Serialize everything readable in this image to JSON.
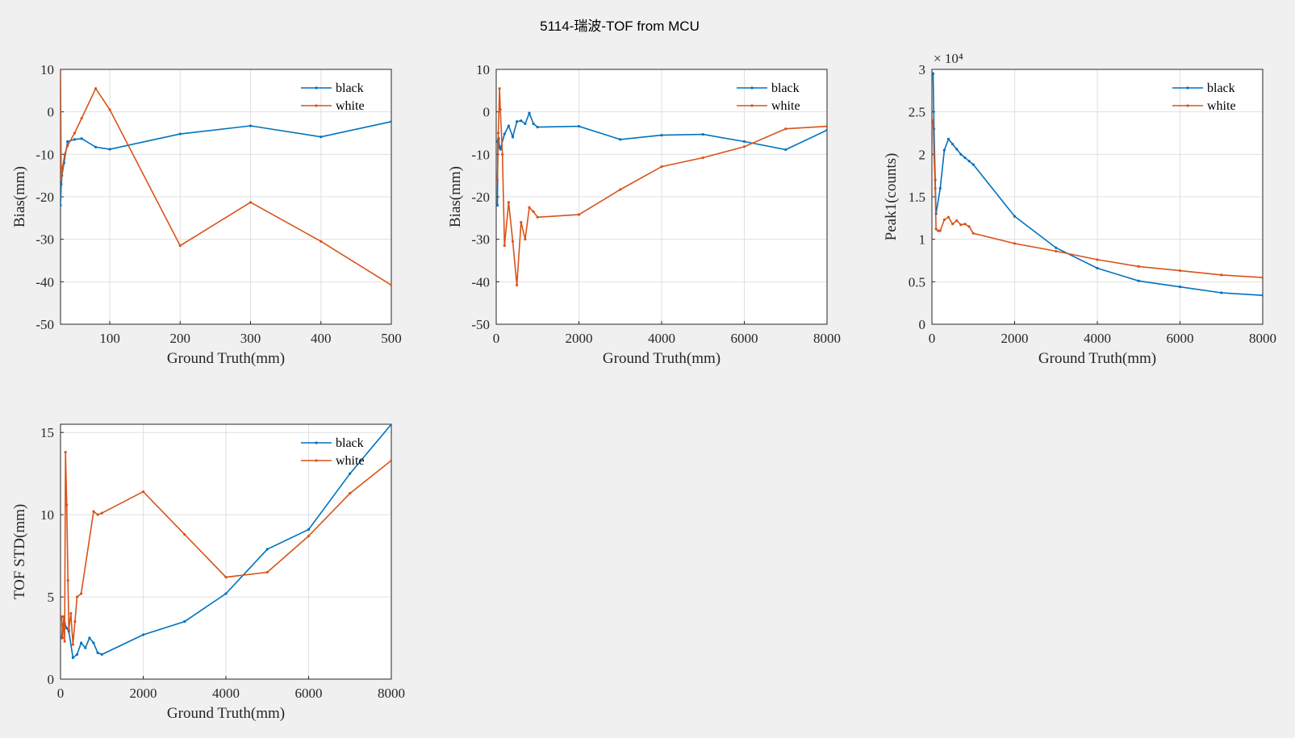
{
  "figure_title": "5114-瑞波-TOF from MCU",
  "colors": {
    "black_series": "#0072bd",
    "white_series": "#d95319",
    "figure_bg": "#f0f0f0"
  },
  "chart_data": [
    {
      "type": "line",
      "xlabel": "Ground Truth(mm)",
      "ylabel": "Bias(mm)",
      "xlim": [
        30,
        500
      ],
      "ylim": [
        -50,
        10
      ],
      "xticks": [
        100,
        200,
        300,
        400,
        500
      ],
      "yticks": [
        -50,
        -40,
        -30,
        -20,
        -10,
        0,
        10
      ],
      "exponent": "",
      "grid": true,
      "legend_position": "top-right",
      "series": [
        {
          "name": "black",
          "x": [
            30,
            31,
            32,
            35,
            40,
            50,
            60,
            80,
            100,
            200,
            300,
            400,
            500
          ],
          "y": [
            -22,
            -17,
            -15,
            -12,
            -7,
            -6.5,
            -6.3,
            -8.3,
            -8.8,
            -5.2,
            -3.3,
            -5.9,
            -2.3
          ]
        },
        {
          "name": "white",
          "x": [
            30,
            31,
            33,
            36,
            40,
            50,
            60,
            80,
            100,
            200,
            300,
            400,
            500
          ],
          "y": [
            10,
            -16,
            -13,
            -10,
            -8,
            -5,
            -1.5,
            5.5,
            0.5,
            -31.5,
            -21.3,
            -30.5,
            -40.8
          ]
        }
      ]
    },
    {
      "type": "line",
      "xlabel": "Ground Truth(mm)",
      "ylabel": "Bias(mm)",
      "xlim": [
        0,
        8000
      ],
      "ylim": [
        -50,
        10
      ],
      "xticks": [
        0,
        2000,
        4000,
        6000,
        8000
      ],
      "yticks": [
        -50,
        -40,
        -30,
        -20,
        -10,
        0,
        10
      ],
      "exponent": "",
      "grid": true,
      "legend_position": "top-right",
      "series": [
        {
          "name": "black",
          "x": [
            30,
            40,
            50,
            60,
            80,
            100,
            200,
            300,
            400,
            500,
            600,
            700,
            800,
            900,
            1000,
            2000,
            3000,
            4000,
            5000,
            6000,
            7000,
            8000
          ],
          "y": [
            -22,
            -7,
            -6.5,
            -6.3,
            -8.3,
            -8.8,
            -5.2,
            -3.3,
            -5.9,
            -2.3,
            -2.1,
            -2.8,
            -0.3,
            -2.8,
            -3.6,
            -3.4,
            -6.5,
            -5.5,
            -5.3,
            -7,
            -8.9,
            -4.3
          ]
        },
        {
          "name": "white",
          "x": [
            30,
            50,
            80,
            100,
            150,
            200,
            300,
            400,
            500,
            600,
            700,
            800,
            900,
            1000,
            2000,
            3000,
            4000,
            5000,
            6000,
            7000,
            8000
          ],
          "y": [
            -16,
            -5,
            5.5,
            0.5,
            -10,
            -31.5,
            -21.3,
            -30.5,
            -40.8,
            -26,
            -30,
            -22.5,
            -23.5,
            -24.8,
            -24.2,
            -18.3,
            -12.9,
            -10.8,
            -8.2,
            -4,
            -3.4
          ]
        }
      ]
    },
    {
      "type": "line",
      "xlabel": "Ground Truth(mm)",
      "ylabel": "Peak1(counts)",
      "xlim": [
        0,
        8000
      ],
      "ylim": [
        0,
        30000
      ],
      "xticks": [
        0,
        2000,
        4000,
        6000,
        8000
      ],
      "yticks": [
        0,
        5000,
        10000,
        15000,
        20000,
        25000,
        30000
      ],
      "ytick_labels": [
        "0",
        "0.5",
        "1",
        "1.5",
        "2",
        "2.5",
        "3"
      ],
      "exponent": "× 10⁴",
      "grid": true,
      "legend_position": "top-right",
      "series": [
        {
          "name": "black",
          "x": [
            30,
            50,
            80,
            100,
            200,
            300,
            400,
            500,
            600,
            700,
            800,
            900,
            1000,
            2000,
            3000,
            4000,
            5000,
            6000,
            7000,
            8000
          ],
          "y": [
            29500,
            23000,
            17000,
            13000,
            16000,
            20500,
            21800,
            21200,
            20600,
            20000,
            19600,
            19200,
            18800,
            12700,
            9000,
            6600,
            5100,
            4400,
            3700,
            3400
          ]
        },
        {
          "name": "white",
          "x": [
            30,
            50,
            80,
            100,
            150,
            200,
            300,
            400,
            500,
            600,
            700,
            800,
            900,
            1000,
            2000,
            3000,
            4000,
            5000,
            6000,
            7000,
            8000
          ],
          "y": [
            24000,
            20000,
            16000,
            11200,
            11000,
            11000,
            12300,
            12600,
            11800,
            12200,
            11700,
            11800,
            11500,
            10700,
            9500,
            8600,
            7600,
            6800,
            6300,
            5800,
            5500
          ]
        }
      ]
    },
    {
      "type": "line",
      "xlabel": "Ground Truth(mm)",
      "ylabel": "TOF STD(mm)",
      "xlim": [
        0,
        8000
      ],
      "ylim": [
        0,
        15.5
      ],
      "xticks": [
        0,
        2000,
        4000,
        6000,
        8000
      ],
      "yticks": [
        0,
        5,
        10,
        15
      ],
      "exponent": "",
      "grid": true,
      "legend_position": "top-right",
      "series": [
        {
          "name": "black",
          "x": [
            30,
            50,
            80,
            100,
            150,
            200,
            300,
            400,
            500,
            600,
            700,
            800,
            900,
            1000,
            2000,
            3000,
            4000,
            5000,
            6000,
            7000,
            8000
          ],
          "y": [
            2.5,
            3.3,
            3,
            3.4,
            3.1,
            2.9,
            1.3,
            1.5,
            2.2,
            1.9,
            2.5,
            2.2,
            1.6,
            1.5,
            2.7,
            3.5,
            5.2,
            7.9,
            9.1,
            12.5,
            15.5
          ]
        },
        {
          "name": "white",
          "x": [
            30,
            50,
            80,
            100,
            120,
            150,
            180,
            200,
            250,
            300,
            350,
            400,
            500,
            800,
            900,
            1000,
            2000,
            3000,
            4000,
            5000,
            6000,
            7000,
            8000
          ],
          "y": [
            3.8,
            2.5,
            3.8,
            2.3,
            13.8,
            10.6,
            6,
            3,
            4,
            2.1,
            3.5,
            5,
            5.2,
            10.2,
            10,
            10.1,
            11.4,
            8.8,
            6.2,
            6.5,
            8.7,
            11.3,
            13.3
          ]
        }
      ]
    }
  ]
}
